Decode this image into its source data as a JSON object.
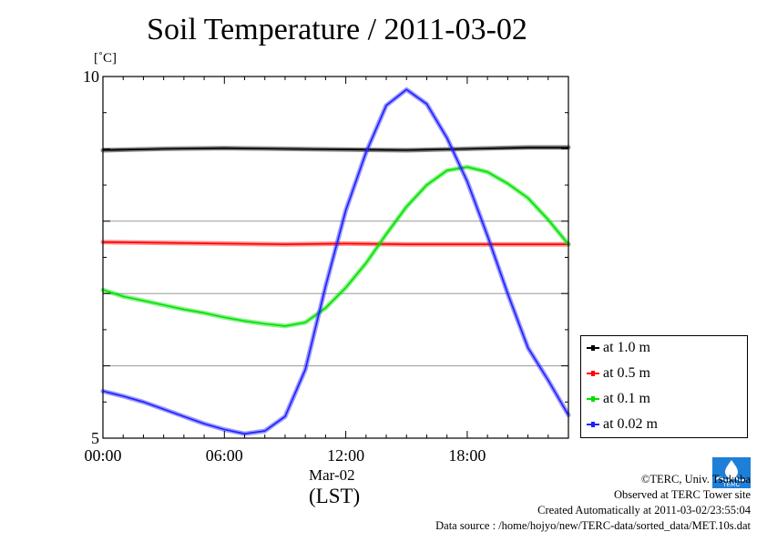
{
  "chart_data": {
    "type": "line",
    "title": "Soil Temperature / 2011-03-02",
    "ylabel": "[˚C]",
    "ylim": [
      5,
      10
    ],
    "yticks": [
      "5",
      "10"
    ],
    "xlim": [
      0,
      23
    ],
    "xticks": [
      {
        "value": 0,
        "label": "00:00"
      },
      {
        "value": 6,
        "label": "06:00"
      },
      {
        "value": 12,
        "label": "12:00"
      },
      {
        "value": 18,
        "label": "18:00"
      }
    ],
    "date_label": "Mar-02",
    "timezone_label": "(LST)",
    "grid": "horizontal",
    "legend_position": "right",
    "series": [
      {
        "name": "at 1.0 m",
        "color": "#000000",
        "x": [
          0,
          3,
          6,
          9,
          12,
          15,
          18,
          21,
          23
        ],
        "y": [
          8.98,
          9.0,
          9.01,
          9.0,
          8.99,
          8.98,
          9.0,
          9.02,
          9.02
        ]
      },
      {
        "name": "at 0.5 m",
        "color": "#ff0000",
        "x": [
          0,
          3,
          6,
          9,
          12,
          15,
          18,
          21,
          23
        ],
        "y": [
          7.71,
          7.7,
          7.69,
          7.68,
          7.69,
          7.68,
          7.68,
          7.68,
          7.68
        ]
      },
      {
        "name": "at 0.1 m",
        "color": "#00e000",
        "x": [
          0,
          1,
          2,
          3,
          4,
          5,
          6,
          7,
          8,
          9,
          10,
          11,
          12,
          13,
          14,
          15,
          16,
          17,
          18,
          19,
          20,
          21,
          22,
          23
        ],
        "y": [
          7.05,
          6.96,
          6.9,
          6.84,
          6.78,
          6.73,
          6.67,
          6.62,
          6.58,
          6.55,
          6.6,
          6.8,
          7.08,
          7.42,
          7.82,
          8.2,
          8.5,
          8.7,
          8.75,
          8.68,
          8.52,
          8.32,
          8.02,
          7.68
        ]
      },
      {
        "name": "at 0.02 m",
        "color": "#2020ff",
        "x": [
          0,
          1,
          2,
          3,
          4,
          5,
          6,
          7,
          8,
          9,
          10,
          11,
          12,
          13,
          14,
          15,
          16,
          17,
          18,
          19,
          20,
          21,
          22,
          23
        ],
        "y": [
          5.65,
          5.58,
          5.5,
          5.4,
          5.3,
          5.2,
          5.12,
          5.06,
          5.1,
          5.3,
          5.95,
          7.1,
          8.15,
          8.95,
          9.6,
          9.82,
          9.62,
          9.15,
          8.55,
          7.8,
          7.0,
          6.25,
          5.8,
          5.32
        ]
      }
    ]
  },
  "credits": {
    "copyright": "©TERC, Univ. Tsukuba",
    "observed": "Observed at TERC Tower site",
    "created": "Created Automatically at 2011-03-02/23:55:04",
    "source": "Data source : /home/hojyo/new/TERC-data/sorted_data/MET.10s.dat",
    "logo_text": "TERC"
  }
}
